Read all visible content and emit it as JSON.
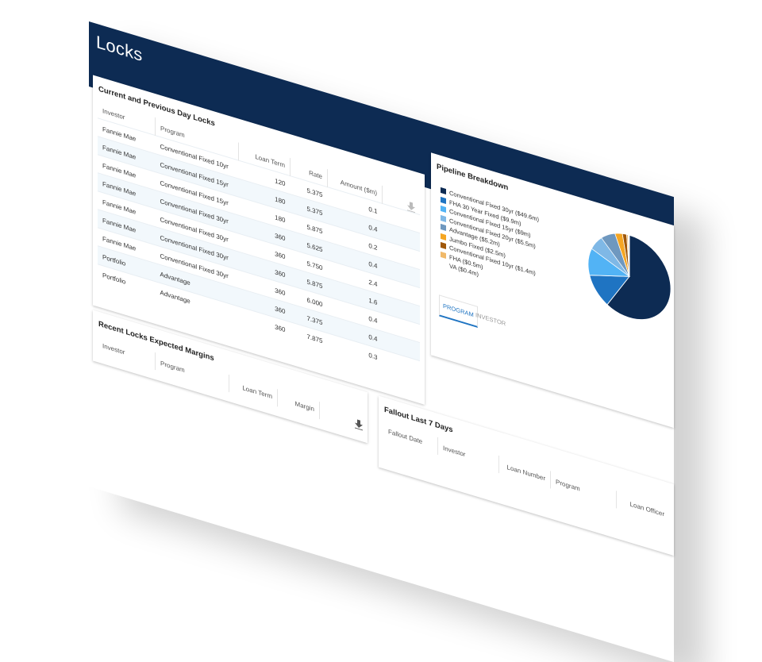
{
  "page": {
    "title": "Locks"
  },
  "locks_table": {
    "title": "Current and Previous Day Locks",
    "columns": [
      "Investor",
      "Program",
      "Loan Term",
      "Rate",
      "Amount ($m)"
    ],
    "rows": [
      {
        "investor": "Fannie Mae",
        "program": "Conventional Fixed 10yr",
        "term": "120",
        "rate": "5.375",
        "amount": "0.1"
      },
      {
        "investor": "Fannie Mae",
        "program": "Conventional Fixed 15yr",
        "term": "180",
        "rate": "5.375",
        "amount": "0.4"
      },
      {
        "investor": "Fannie Mae",
        "program": "Conventional Fixed 15yr",
        "term": "180",
        "rate": "5.875",
        "amount": "0.2"
      },
      {
        "investor": "Fannie Mae",
        "program": "Conventional Fixed 30yr",
        "term": "360",
        "rate": "5.625",
        "amount": "0.4"
      },
      {
        "investor": "Fannie Mae",
        "program": "Conventional Fixed 30yr",
        "term": "360",
        "rate": "5.750",
        "amount": "2.4"
      },
      {
        "investor": "Fannie Mae",
        "program": "Conventional Fixed 30yr",
        "term": "360",
        "rate": "5.875",
        "amount": "1.6"
      },
      {
        "investor": "Fannie Mae",
        "program": "Conventional Fixed 30yr",
        "term": "360",
        "rate": "6.000",
        "amount": "0.4"
      },
      {
        "investor": "Portfolio",
        "program": "Advantage",
        "term": "360",
        "rate": "7.375",
        "amount": "0.4"
      },
      {
        "investor": "Portfolio",
        "program": "Advantage",
        "term": "360",
        "rate": "7.875",
        "amount": "0.3"
      }
    ],
    "download_icon": "download-icon"
  },
  "margins_table": {
    "title": "Recent Locks Expected Margins",
    "columns": [
      "Investor",
      "Program",
      "Loan Term",
      "Margin"
    ],
    "download_icon": "download-icon"
  },
  "pipeline": {
    "title": "Pipeline Breakdown",
    "legend": [
      {
        "label": "Conventional Fixed 30yr ($49.6m)",
        "color": "#0d2b53"
      },
      {
        "label": "FHA 30 Year Fixed ($9.9m)",
        "color": "#1f74c2"
      },
      {
        "label": "Conventional Fixed 15yr ($9m)",
        "color": "#52b3f5"
      },
      {
        "label": "Conventional Fixed 20yr ($5.5m)",
        "color": "#7fb8e6"
      },
      {
        "label": "Advantage ($5.2m)",
        "color": "#6f98bf"
      },
      {
        "label": "Jumbo Fixed ($2.5m)",
        "color": "#f5a623"
      },
      {
        "label": "Conventional Fixed 10yr ($1.4m)",
        "color": "#a0580a"
      },
      {
        "label": "FHA ($0.5m)",
        "color": "#f0b96a"
      },
      {
        "label": "VA ($0.4m)",
        "color": "#ffffff"
      }
    ],
    "tabs": [
      {
        "label": "PROGRAM",
        "active": true
      },
      {
        "label": "INVESTOR",
        "active": false
      }
    ]
  },
  "chart_data": {
    "type": "pie",
    "categories": [
      "Conventional Fixed 30yr",
      "FHA 30 Year Fixed",
      "Conventional Fixed 15yr",
      "Conventional Fixed 20yr",
      "Advantage",
      "Jumbo Fixed",
      "Conventional Fixed 10yr",
      "FHA",
      "VA"
    ],
    "values": [
      49.6,
      9.9,
      9.0,
      5.5,
      5.2,
      2.5,
      1.4,
      0.5,
      0.4
    ],
    "colors": [
      "#0d2b53",
      "#1f74c2",
      "#52b3f5",
      "#7fb8e6",
      "#6f98bf",
      "#f5a623",
      "#a0580a",
      "#f0b96a",
      "#ffffff"
    ],
    "title": "Pipeline Breakdown",
    "legend": "left"
  },
  "fallout_table": {
    "title": "Fallout Last 7 Days",
    "columns": [
      "Fallout Date",
      "Investor",
      "Loan Number",
      "Program",
      "Loan Officer"
    ]
  }
}
